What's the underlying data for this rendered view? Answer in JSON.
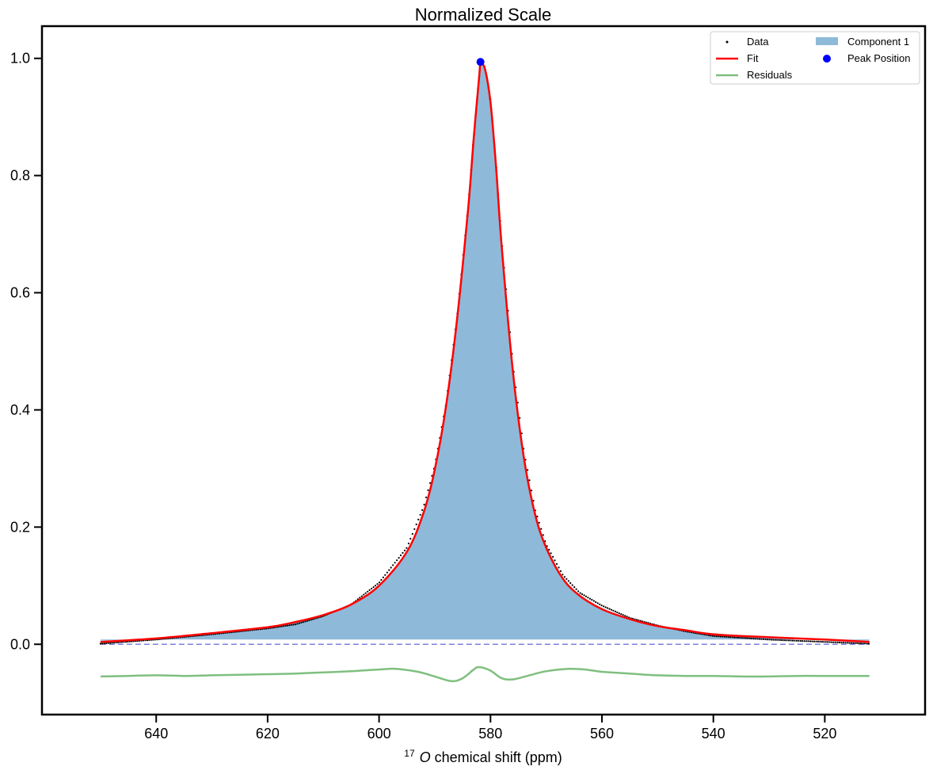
{
  "chart_data": {
    "type": "line",
    "title": "Normalized Scale",
    "xlabel_superscript": "17",
    "xlabel_italic": "O",
    "xlabel_rest": " chemical shift  (ppm)",
    "xlim": [
      660.5,
      502
    ],
    "ylim": [
      -0.12,
      1.055
    ],
    "x_ticks": [
      640,
      620,
      600,
      580,
      560,
      540,
      520
    ],
    "x_tick_labels": [
      "640",
      "620",
      "600",
      "580",
      "560",
      "540",
      "520"
    ],
    "y_ticks": [
      0.0,
      0.2,
      0.4,
      0.6,
      0.8,
      1.0
    ],
    "y_tick_labels": [
      "0.0",
      "0.2",
      "0.4",
      "0.6",
      "0.8",
      "1.0"
    ],
    "grid": false,
    "legend": {
      "placement": "top-right",
      "entries": [
        "Data",
        "Component 1",
        "Fit",
        "Peak Position",
        "Residuals"
      ]
    },
    "x_range": [
      650,
      512
    ],
    "peak_position": {
      "x": 581.8,
      "y": 0.994
    },
    "baseline": {
      "y": 0.0,
      "style": "dashed"
    },
    "series": [
      {
        "name": "Data",
        "style": "dots",
        "points": [
          [
            650,
            0.001
          ],
          [
            640,
            0.008
          ],
          [
            630,
            0.017
          ],
          [
            620,
            0.027
          ],
          [
            615,
            0.034
          ],
          [
            610,
            0.048
          ],
          [
            605,
            0.068
          ],
          [
            600,
            0.105
          ],
          [
            595,
            0.165
          ],
          [
            592,
            0.235
          ],
          [
            590,
            0.305
          ],
          [
            588,
            0.41
          ],
          [
            586,
            0.56
          ],
          [
            584,
            0.75
          ],
          [
            583,
            0.87
          ],
          [
            582,
            0.975
          ],
          [
            581.8,
            0.994
          ],
          [
            581,
            0.985
          ],
          [
            580,
            0.93
          ],
          [
            579,
            0.82
          ],
          [
            578,
            0.69
          ],
          [
            576,
            0.48
          ],
          [
            574,
            0.33
          ],
          [
            572,
            0.23
          ],
          [
            570,
            0.17
          ],
          [
            567,
            0.118
          ],
          [
            564,
            0.088
          ],
          [
            560,
            0.066
          ],
          [
            555,
            0.045
          ],
          [
            550,
            0.032
          ],
          [
            545,
            0.022
          ],
          [
            540,
            0.014
          ],
          [
            530,
            0.008
          ],
          [
            520,
            0.004
          ],
          [
            512,
            0.001
          ]
        ]
      },
      {
        "name": "Fit",
        "color": "#ff0000",
        "points": [
          [
            650,
            0.004
          ],
          [
            640,
            0.01
          ],
          [
            630,
            0.019
          ],
          [
            620,
            0.029
          ],
          [
            615,
            0.038
          ],
          [
            610,
            0.05
          ],
          [
            605,
            0.068
          ],
          [
            600,
            0.1
          ],
          [
            595,
            0.158
          ],
          [
            592,
            0.225
          ],
          [
            590,
            0.298
          ],
          [
            588,
            0.405
          ],
          [
            586,
            0.555
          ],
          [
            584,
            0.745
          ],
          [
            583,
            0.865
          ],
          [
            582,
            0.972
          ],
          [
            581.8,
            0.99
          ],
          [
            581,
            0.982
          ],
          [
            580,
            0.925
          ],
          [
            579,
            0.815
          ],
          [
            578,
            0.68
          ],
          [
            576,
            0.468
          ],
          [
            574,
            0.318
          ],
          [
            572,
            0.222
          ],
          [
            570,
            0.165
          ],
          [
            567,
            0.112
          ],
          [
            564,
            0.083
          ],
          [
            560,
            0.06
          ],
          [
            555,
            0.043
          ],
          [
            550,
            0.031
          ],
          [
            545,
            0.024
          ],
          [
            540,
            0.017
          ],
          [
            530,
            0.012
          ],
          [
            520,
            0.008
          ],
          [
            512,
            0.004
          ]
        ]
      },
      {
        "name": "Component 1",
        "style": "fill",
        "color": "#8fb9d9",
        "fill_base": 0.008,
        "points": [
          [
            650,
            0.006
          ],
          [
            640,
            0.011
          ],
          [
            630,
            0.02
          ],
          [
            620,
            0.03
          ],
          [
            615,
            0.039
          ],
          [
            610,
            0.051
          ],
          [
            605,
            0.069
          ],
          [
            600,
            0.101
          ],
          [
            595,
            0.159
          ],
          [
            592,
            0.226
          ],
          [
            590,
            0.299
          ],
          [
            588,
            0.406
          ],
          [
            586,
            0.556
          ],
          [
            584,
            0.746
          ],
          [
            583,
            0.866
          ],
          [
            582,
            0.973
          ],
          [
            581.8,
            0.991
          ],
          [
            581,
            0.983
          ],
          [
            580,
            0.926
          ],
          [
            579,
            0.816
          ],
          [
            578,
            0.681
          ],
          [
            576,
            0.469
          ],
          [
            574,
            0.319
          ],
          [
            572,
            0.223
          ],
          [
            570,
            0.166
          ],
          [
            567,
            0.113
          ],
          [
            564,
            0.084
          ],
          [
            560,
            0.061
          ],
          [
            555,
            0.044
          ],
          [
            550,
            0.033
          ],
          [
            545,
            0.025
          ],
          [
            540,
            0.019
          ],
          [
            530,
            0.013
          ],
          [
            520,
            0.009
          ],
          [
            512,
            0.006
          ]
        ]
      },
      {
        "name": "Residuals",
        "color": "#7fbf7f",
        "points": [
          [
            650,
            -0.055
          ],
          [
            645,
            -0.054
          ],
          [
            640,
            -0.053
          ],
          [
            635,
            -0.054
          ],
          [
            630,
            -0.053
          ],
          [
            625,
            -0.052
          ],
          [
            620,
            -0.051
          ],
          [
            615,
            -0.05
          ],
          [
            610,
            -0.048
          ],
          [
            605,
            -0.046
          ],
          [
            600,
            -0.043
          ],
          [
            597,
            -0.042
          ],
          [
            593,
            -0.047
          ],
          [
            590,
            -0.055
          ],
          [
            587,
            -0.063
          ],
          [
            585,
            -0.058
          ],
          [
            583,
            -0.043
          ],
          [
            582,
            -0.039
          ],
          [
            580,
            -0.045
          ],
          [
            578,
            -0.058
          ],
          [
            576,
            -0.06
          ],
          [
            573,
            -0.053
          ],
          [
            570,
            -0.046
          ],
          [
            566,
            -0.042
          ],
          [
            563,
            -0.043
          ],
          [
            560,
            -0.047
          ],
          [
            555,
            -0.05
          ],
          [
            550,
            -0.053
          ],
          [
            545,
            -0.054
          ],
          [
            540,
            -0.054
          ],
          [
            535,
            -0.055
          ],
          [
            530,
            -0.055
          ],
          [
            525,
            -0.054
          ],
          [
            520,
            -0.054
          ],
          [
            512,
            -0.054
          ]
        ]
      }
    ]
  },
  "colors": {
    "data_dots": "#000000",
    "fit": "#ff0000",
    "component": "#8fb9d9",
    "residuals": "#7fbf7f",
    "peak": "#0000ff",
    "baseline": "#8080e0"
  }
}
